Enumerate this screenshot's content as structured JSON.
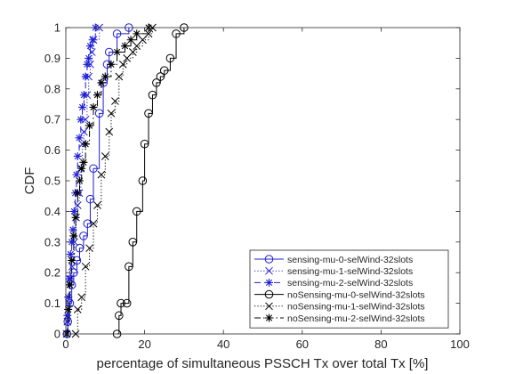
{
  "chart_data": {
    "type": "line",
    "xlabel": "percentage of simultaneous PSSCH Tx over total Tx [%]",
    "ylabel": "CDF",
    "xlim": [
      0,
      100
    ],
    "ylim": [
      0,
      1
    ],
    "xticks": [
      "0",
      "20",
      "40",
      "60",
      "80",
      "100"
    ],
    "yticks": [
      "0",
      "0.1",
      "0.2",
      "0.3",
      "0.4",
      "0.5",
      "0.6",
      "0.7",
      "0.8",
      "0.9",
      "1"
    ],
    "grid": false,
    "legend_position": "bottom-right",
    "series": [
      {
        "name": "sensing-mu-0-selWind-32slots",
        "color": "#1f1fd6",
        "line_style": "solid",
        "marker": "circle",
        "points": [
          [
            0.3,
            0
          ],
          [
            0.5,
            0.04
          ],
          [
            1.0,
            0.1
          ],
          [
            1.5,
            0.16
          ],
          [
            2.0,
            0.2
          ],
          [
            2.8,
            0.24
          ],
          [
            3.5,
            0.28
          ],
          [
            4.5,
            0.32
          ],
          [
            5.5,
            0.36
          ],
          [
            6.2,
            0.44
          ],
          [
            7.0,
            0.54
          ],
          [
            8.5,
            0.72
          ],
          [
            9.5,
            0.82
          ],
          [
            10.5,
            0.88
          ],
          [
            11.0,
            0.92
          ],
          [
            13.0,
            0.98
          ],
          [
            16.0,
            1.0
          ]
        ]
      },
      {
        "name": "sensing-mu-1-selWind-32slots",
        "color": "#1f1fd6",
        "line_style": "dotted",
        "marker": "x",
        "points": [
          [
            0.2,
            0
          ],
          [
            0.4,
            0.04
          ],
          [
            0.8,
            0.1
          ],
          [
            1.2,
            0.18
          ],
          [
            1.6,
            0.22
          ],
          [
            2.2,
            0.3
          ],
          [
            2.6,
            0.38
          ],
          [
            3.0,
            0.42
          ],
          [
            3.4,
            0.46
          ],
          [
            3.8,
            0.54
          ],
          [
            4.2,
            0.62
          ],
          [
            4.6,
            0.66
          ],
          [
            5.0,
            0.7
          ],
          [
            5.4,
            0.78
          ],
          [
            5.8,
            0.84
          ],
          [
            6.2,
            0.88
          ],
          [
            6.6,
            0.92
          ],
          [
            7.0,
            0.96
          ],
          [
            8.5,
            1.0
          ]
        ]
      },
      {
        "name": "sensing-mu-2-selWind-32slots",
        "color": "#1f1fd6",
        "line_style": "dashed",
        "marker": "asterisk",
        "points": [
          [
            0.2,
            0
          ],
          [
            0.4,
            0.06
          ],
          [
            0.6,
            0.12
          ],
          [
            0.9,
            0.18
          ],
          [
            1.2,
            0.26
          ],
          [
            1.5,
            0.3
          ],
          [
            1.8,
            0.34
          ],
          [
            2.1,
            0.4
          ],
          [
            2.4,
            0.46
          ],
          [
            2.7,
            0.52
          ],
          [
            3.0,
            0.58
          ],
          [
            3.4,
            0.64
          ],
          [
            3.8,
            0.7
          ],
          [
            4.2,
            0.74
          ],
          [
            4.6,
            0.78
          ],
          [
            5.0,
            0.84
          ],
          [
            5.4,
            0.88
          ],
          [
            5.8,
            0.9
          ],
          [
            6.2,
            0.94
          ],
          [
            6.8,
            0.96
          ],
          [
            7.5,
            1.0
          ]
        ]
      },
      {
        "name": "noSensing-mu-0-selWind-32slots",
        "color": "#000000",
        "line_style": "solid",
        "marker": "circle",
        "points": [
          [
            13.0,
            0
          ],
          [
            13.5,
            0.06
          ],
          [
            14.0,
            0.1
          ],
          [
            15.5,
            0.1
          ],
          [
            16.0,
            0.22
          ],
          [
            17.0,
            0.3
          ],
          [
            18.0,
            0.4
          ],
          [
            19.5,
            0.5
          ],
          [
            20.0,
            0.62
          ],
          [
            21.0,
            0.72
          ],
          [
            22.0,
            0.78
          ],
          [
            23.0,
            0.82
          ],
          [
            24.0,
            0.84
          ],
          [
            25.0,
            0.86
          ],
          [
            26.5,
            0.9
          ],
          [
            28.0,
            0.98
          ],
          [
            30.0,
            1.0
          ]
        ]
      },
      {
        "name": "noSensing-mu-1-selWind-32slots",
        "color": "#000000",
        "line_style": "dotted",
        "marker": "x",
        "points": [
          [
            2.5,
            0
          ],
          [
            3.0,
            0.08
          ],
          [
            4.0,
            0.12
          ],
          [
            5.0,
            0.22
          ],
          [
            6.0,
            0.28
          ],
          [
            7.0,
            0.36
          ],
          [
            8.0,
            0.42
          ],
          [
            9.0,
            0.52
          ],
          [
            10.0,
            0.58
          ],
          [
            11.0,
            0.66
          ],
          [
            11.5,
            0.72
          ],
          [
            12.5,
            0.76
          ],
          [
            13.5,
            0.84
          ],
          [
            14.5,
            0.88
          ],
          [
            15.5,
            0.9
          ],
          [
            17.0,
            0.92
          ],
          [
            18.0,
            0.94
          ],
          [
            19.5,
            0.96
          ],
          [
            21.0,
            0.98
          ],
          [
            22.0,
            1.0
          ]
        ]
      },
      {
        "name": "noSensing-mu-2-selWind-32slots",
        "color": "#000000",
        "line_style": "dashdot",
        "marker": "asterisk",
        "points": [
          [
            0.3,
            0
          ],
          [
            0.6,
            0.08
          ],
          [
            1.0,
            0.16
          ],
          [
            1.5,
            0.24
          ],
          [
            2.0,
            0.32
          ],
          [
            2.5,
            0.38
          ],
          [
            3.0,
            0.46
          ],
          [
            3.5,
            0.5
          ],
          [
            4.0,
            0.54
          ],
          [
            4.5,
            0.56
          ],
          [
            5.0,
            0.62
          ],
          [
            6.0,
            0.68
          ],
          [
            7.0,
            0.74
          ],
          [
            8.0,
            0.78
          ],
          [
            9.0,
            0.82
          ],
          [
            10.0,
            0.84
          ],
          [
            11.5,
            0.88
          ],
          [
            13.0,
            0.92
          ],
          [
            15.0,
            0.94
          ],
          [
            16.5,
            0.96
          ],
          [
            18.0,
            0.98
          ],
          [
            21.0,
            1.0
          ]
        ]
      }
    ]
  }
}
